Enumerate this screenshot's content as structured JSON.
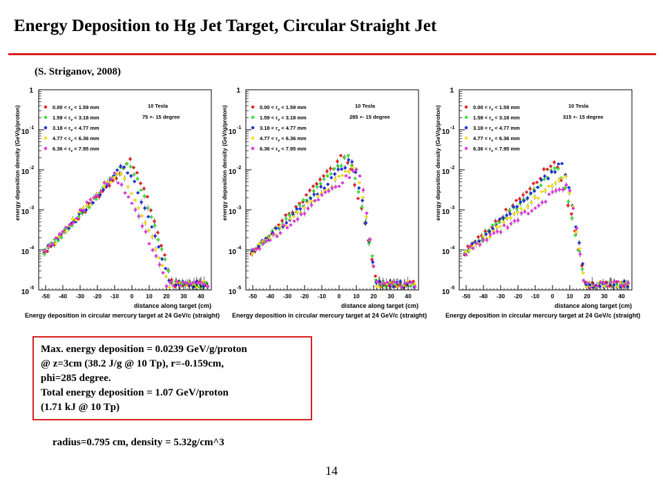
{
  "slide": {
    "title": "Energy Deposition to Hg Jet Target, Circular Straight Jet",
    "citation": "(S. Striganov, 2008)",
    "info_lines": [
      "Max. energy deposition = 0.0239 GeV/g/proton",
      "@  z=3cm (38.2 J/g @ 10 Tp), r=-0.159cm,",
      "phi=285 degree.",
      "Total energy deposition = 1.07 GeV/proton",
      "(1.71 kJ @ 10 Tp)"
    ],
    "footnote": "radius=0.795 cm, density = 5.32g/cm^3",
    "page_number": "14"
  },
  "chart_data": [
    {
      "type": "scatter",
      "field_label": "10 Tesla",
      "angle_label": "75 +- 15 degree",
      "xlabel": "distance along target (cm)",
      "ylabel": "energy deposition density (GeV/g/proton)",
      "caption": "Energy deposition in circular mercury target at 24 GeV/c (straight)",
      "xlim": [
        -54,
        46
      ],
      "ylim": [
        1e-05,
        1
      ],
      "yscale": "log",
      "xticks": [
        -50,
        -40,
        -30,
        -20,
        -10,
        0,
        10,
        20,
        30,
        40
      ],
      "yticks": [
        1,
        0.1,
        0.01,
        0.001,
        0.0001,
        1e-05
      ],
      "ytick_labels": [
        "1",
        "10^-1",
        "10^-2",
        "10^-3",
        "10^-4",
        "10^-5"
      ],
      "series": [
        {
          "name": "0.00 < r_v < 1.59 mm",
          "color": "#e8262b",
          "peak_x": -1,
          "peak_y": 0.017,
          "fall_end": 24
        },
        {
          "name": "1.59 < r_v < 3.18 mm",
          "color": "#3ee03e",
          "peak_x": -3,
          "peak_y": 0.0155,
          "fall_end": 24
        },
        {
          "name": "3.18 < r_v < 4.77 mm",
          "color": "#2233dd",
          "peak_x": -5,
          "peak_y": 0.0125,
          "fall_end": 24
        },
        {
          "name": "4.77 < r_v < 6.36 mm",
          "color": "#f2e21c",
          "peak_x": -8,
          "peak_y": 0.0095,
          "fall_end": 24
        },
        {
          "name": "6.36 < r_v < 7.95 mm",
          "color": "#e03ae0",
          "peak_x": -11,
          "peak_y": 0.0075,
          "fall_end": 24
        }
      ]
    },
    {
      "type": "scatter",
      "field_label": "10 Tesla",
      "angle_label": "285 +- 15 degree",
      "xlabel": "distance along target (cm)",
      "ylabel": "energy deposition density (GeV/g/proton)",
      "caption": "Energy deposition in circular mercury target at 24 GeV/c (straight)",
      "xlim": [
        -54,
        46
      ],
      "ylim": [
        1e-05,
        1
      ],
      "yscale": "log",
      "xticks": [
        -50,
        -40,
        -30,
        -20,
        -10,
        0,
        10,
        20,
        30,
        40
      ],
      "yticks": [
        1,
        0.1,
        0.01,
        0.001,
        0.0001,
        1e-05
      ],
      "ytick_labels": [
        "1",
        "10^-1",
        "10^-2",
        "10^-3",
        "10^-4",
        "10^-5"
      ],
      "series": [
        {
          "name": "0.00 < r_v < 1.59 mm",
          "color": "#e8262b",
          "peak_x": 3,
          "peak_y": 0.0239,
          "fall_end": 22
        },
        {
          "name": "1.59 < r_v < 3.18 mm",
          "color": "#3ee03e",
          "peak_x": 5,
          "peak_y": 0.021,
          "fall_end": 22
        },
        {
          "name": "3.18 < r_v < 4.77 mm",
          "color": "#2233dd",
          "peak_x": 7,
          "peak_y": 0.018,
          "fall_end": 22
        },
        {
          "name": "4.77 < r_v < 6.36 mm",
          "color": "#f2e21c",
          "peak_x": 9,
          "peak_y": 0.014,
          "fall_end": 22
        },
        {
          "name": "6.36 < r_v < 7.95 mm",
          "color": "#e03ae0",
          "peak_x": 11,
          "peak_y": 0.011,
          "fall_end": 22
        }
      ]
    },
    {
      "type": "scatter",
      "field_label": "10 Tesla",
      "angle_label": "315 +- 15 degree",
      "xlabel": "distance along target (cm)",
      "ylabel": "energy deposition density (GeV/g/proton)",
      "caption": "Energy deposition in circular mercury target at 24 GeV/c (straight)",
      "xlim": [
        -54,
        46
      ],
      "ylim": [
        1e-05,
        1
      ],
      "yscale": "log",
      "xticks": [
        -50,
        -40,
        -30,
        -20,
        -10,
        0,
        10,
        20,
        30,
        40
      ],
      "yticks": [
        1,
        0.1,
        0.01,
        0.001,
        0.0001,
        1e-05
      ],
      "ytick_labels": [
        "1",
        "10^-1",
        "10^-2",
        "10^-3",
        "10^-4",
        "10^-5"
      ],
      "series": [
        {
          "name": "0.00 < r_v < 1.59 mm",
          "color": "#e8262b",
          "peak_x": 1,
          "peak_y": 0.0165,
          "fall_end": 20
        },
        {
          "name": "1.59 < r_v < 3.18 mm",
          "color": "#3ee03e",
          "peak_x": 3,
          "peak_y": 0.012,
          "fall_end": 20
        },
        {
          "name": "3.18 < r_v < 4.77 mm",
          "color": "#2233dd",
          "peak_x": 5,
          "peak_y": 0.0145,
          "fall_end": 20
        },
        {
          "name": "4.77 < r_v < 6.36 mm",
          "color": "#f2e21c",
          "peak_x": 7,
          "peak_y": 0.0075,
          "fall_end": 20
        },
        {
          "name": "6.36 < r_v < 7.95 mm",
          "color": "#e03ae0",
          "peak_x": 9,
          "peak_y": 0.0045,
          "fall_end": 20
        }
      ]
    }
  ]
}
